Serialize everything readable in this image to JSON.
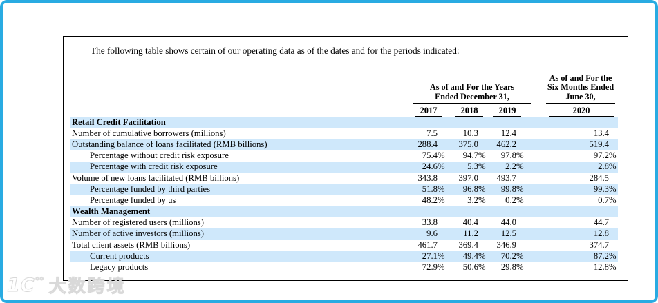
{
  "page": {
    "intro": "The following table shows certain of our operating data as of the dates and for the periods indicated:"
  },
  "colors": {
    "frame_border": "#29abe2",
    "row_shade": "#cfe8fb",
    "table_border": "#000000"
  },
  "watermark": {
    "logo_main": "1C",
    "logo_sup": "°°",
    "text": "大数跨境"
  },
  "table": {
    "group_years": {
      "line1": "As of and For the Years",
      "line2": "Ended December 31,"
    },
    "group_six_months": {
      "line1": "As of and For the",
      "line2": "Six Months Ended",
      "line3": "June 30,"
    },
    "years": [
      "2017",
      "2018",
      "2019",
      "2020"
    ],
    "rows": [
      {
        "label": "Retail Credit Facilitation",
        "section": true,
        "indent": 0,
        "values": [
          "",
          "",
          "",
          ""
        ]
      },
      {
        "label": "Number of cumulative borrowers (millions)",
        "section": false,
        "indent": 0,
        "values": [
          "7.5",
          "10.3",
          "12.4",
          "13.4"
        ]
      },
      {
        "label": "Outstanding balance of loans facilitated (RMB billions)",
        "section": false,
        "indent": 0,
        "values": [
          "288.4",
          "375.0",
          "462.2",
          "519.4"
        ]
      },
      {
        "label": "Percentage without credit risk exposure",
        "section": false,
        "indent": 1,
        "values": [
          "75.4%",
          "94.7%",
          "97.8%",
          "97.2%"
        ]
      },
      {
        "label": "Percentage with credit risk exposure",
        "section": false,
        "indent": 1,
        "values": [
          "24.6%",
          "5.3%",
          "2.2%",
          "2.8%"
        ]
      },
      {
        "label": "Volume of new loans facilitated (RMB billions)",
        "section": false,
        "indent": 0,
        "values": [
          "343.8",
          "397.0",
          "493.7",
          "284.5"
        ]
      },
      {
        "label": "Percentage funded by third parties",
        "section": false,
        "indent": 1,
        "values": [
          "51.8%",
          "96.8%",
          "99.8%",
          "99.3%"
        ]
      },
      {
        "label": "Percentage funded by us",
        "section": false,
        "indent": 1,
        "values": [
          "48.2%",
          "3.2%",
          "0.2%",
          "0.7%"
        ]
      },
      {
        "label": "Wealth Management",
        "section": true,
        "indent": 0,
        "values": [
          "",
          "",
          "",
          ""
        ]
      },
      {
        "label": "Number of registered users (millions)",
        "section": false,
        "indent": 0,
        "values": [
          "33.8",
          "40.4",
          "44.0",
          "44.7"
        ]
      },
      {
        "label": "Number of active investors (millions)",
        "section": false,
        "indent": 0,
        "values": [
          "9.6",
          "11.2",
          "12.5",
          "12.8"
        ]
      },
      {
        "label": "Total client assets (RMB billions)",
        "section": false,
        "indent": 0,
        "values": [
          "461.7",
          "369.4",
          "346.9",
          "374.7"
        ]
      },
      {
        "label": "Current products",
        "section": false,
        "indent": 1,
        "values": [
          "27.1%",
          "49.4%",
          "70.2%",
          "87.2%"
        ]
      },
      {
        "label": "Legacy products",
        "section": false,
        "indent": 1,
        "values": [
          "72.9%",
          "50.6%",
          "29.8%",
          "12.8%"
        ]
      }
    ]
  }
}
